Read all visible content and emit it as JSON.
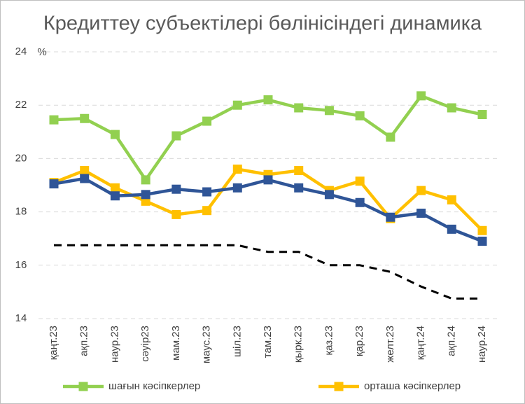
{
  "chart_data": {
    "type": "line",
    "title": "Кредиттеу субъектілері бөлінісіндегі динамика",
    "ylabel": "%",
    "categories": [
      "қаңт.23",
      "ақп.23",
      "наур.23",
      "сәуір23",
      "мам.23",
      "маус.23",
      "шіл.23",
      "там.23",
      "қырк.23",
      "қаз.23",
      "қар.23",
      "желт.23",
      "қаңт.24",
      "ақп.24",
      "наур.24"
    ],
    "series": [
      {
        "name": "шағын кәсіпкерлер",
        "color": "#92d050",
        "values": [
          21.45,
          21.5,
          20.9,
          19.2,
          20.85,
          21.4,
          22.0,
          22.2,
          21.9,
          21.8,
          21.6,
          20.8,
          22.35,
          21.9,
          21.65
        ]
      },
      {
        "name": "орташа кәсіпкерлер",
        "color": "#ffc000",
        "values": [
          19.1,
          19.55,
          18.9,
          18.4,
          17.9,
          18.05,
          19.6,
          19.4,
          19.55,
          18.8,
          19.15,
          17.75,
          18.8,
          18.45,
          17.3
        ]
      },
      {
        "color": "#2f5597",
        "values": [
          19.05,
          19.25,
          18.6,
          18.65,
          18.85,
          18.75,
          18.9,
          19.2,
          18.9,
          18.65,
          18.35,
          17.8,
          17.95,
          17.35,
          16.9
        ]
      },
      {
        "color": "#000000",
        "dashed": true,
        "values": [
          16.75,
          16.75,
          16.75,
          16.75,
          16.75,
          16.75,
          16.75,
          16.5,
          16.5,
          16.0,
          16.0,
          15.75,
          15.2,
          14.75,
          14.75
        ]
      }
    ],
    "ylim": [
      14,
      24
    ],
    "yticks": [
      14,
      16,
      18,
      20,
      22,
      24
    ],
    "grid": true
  }
}
